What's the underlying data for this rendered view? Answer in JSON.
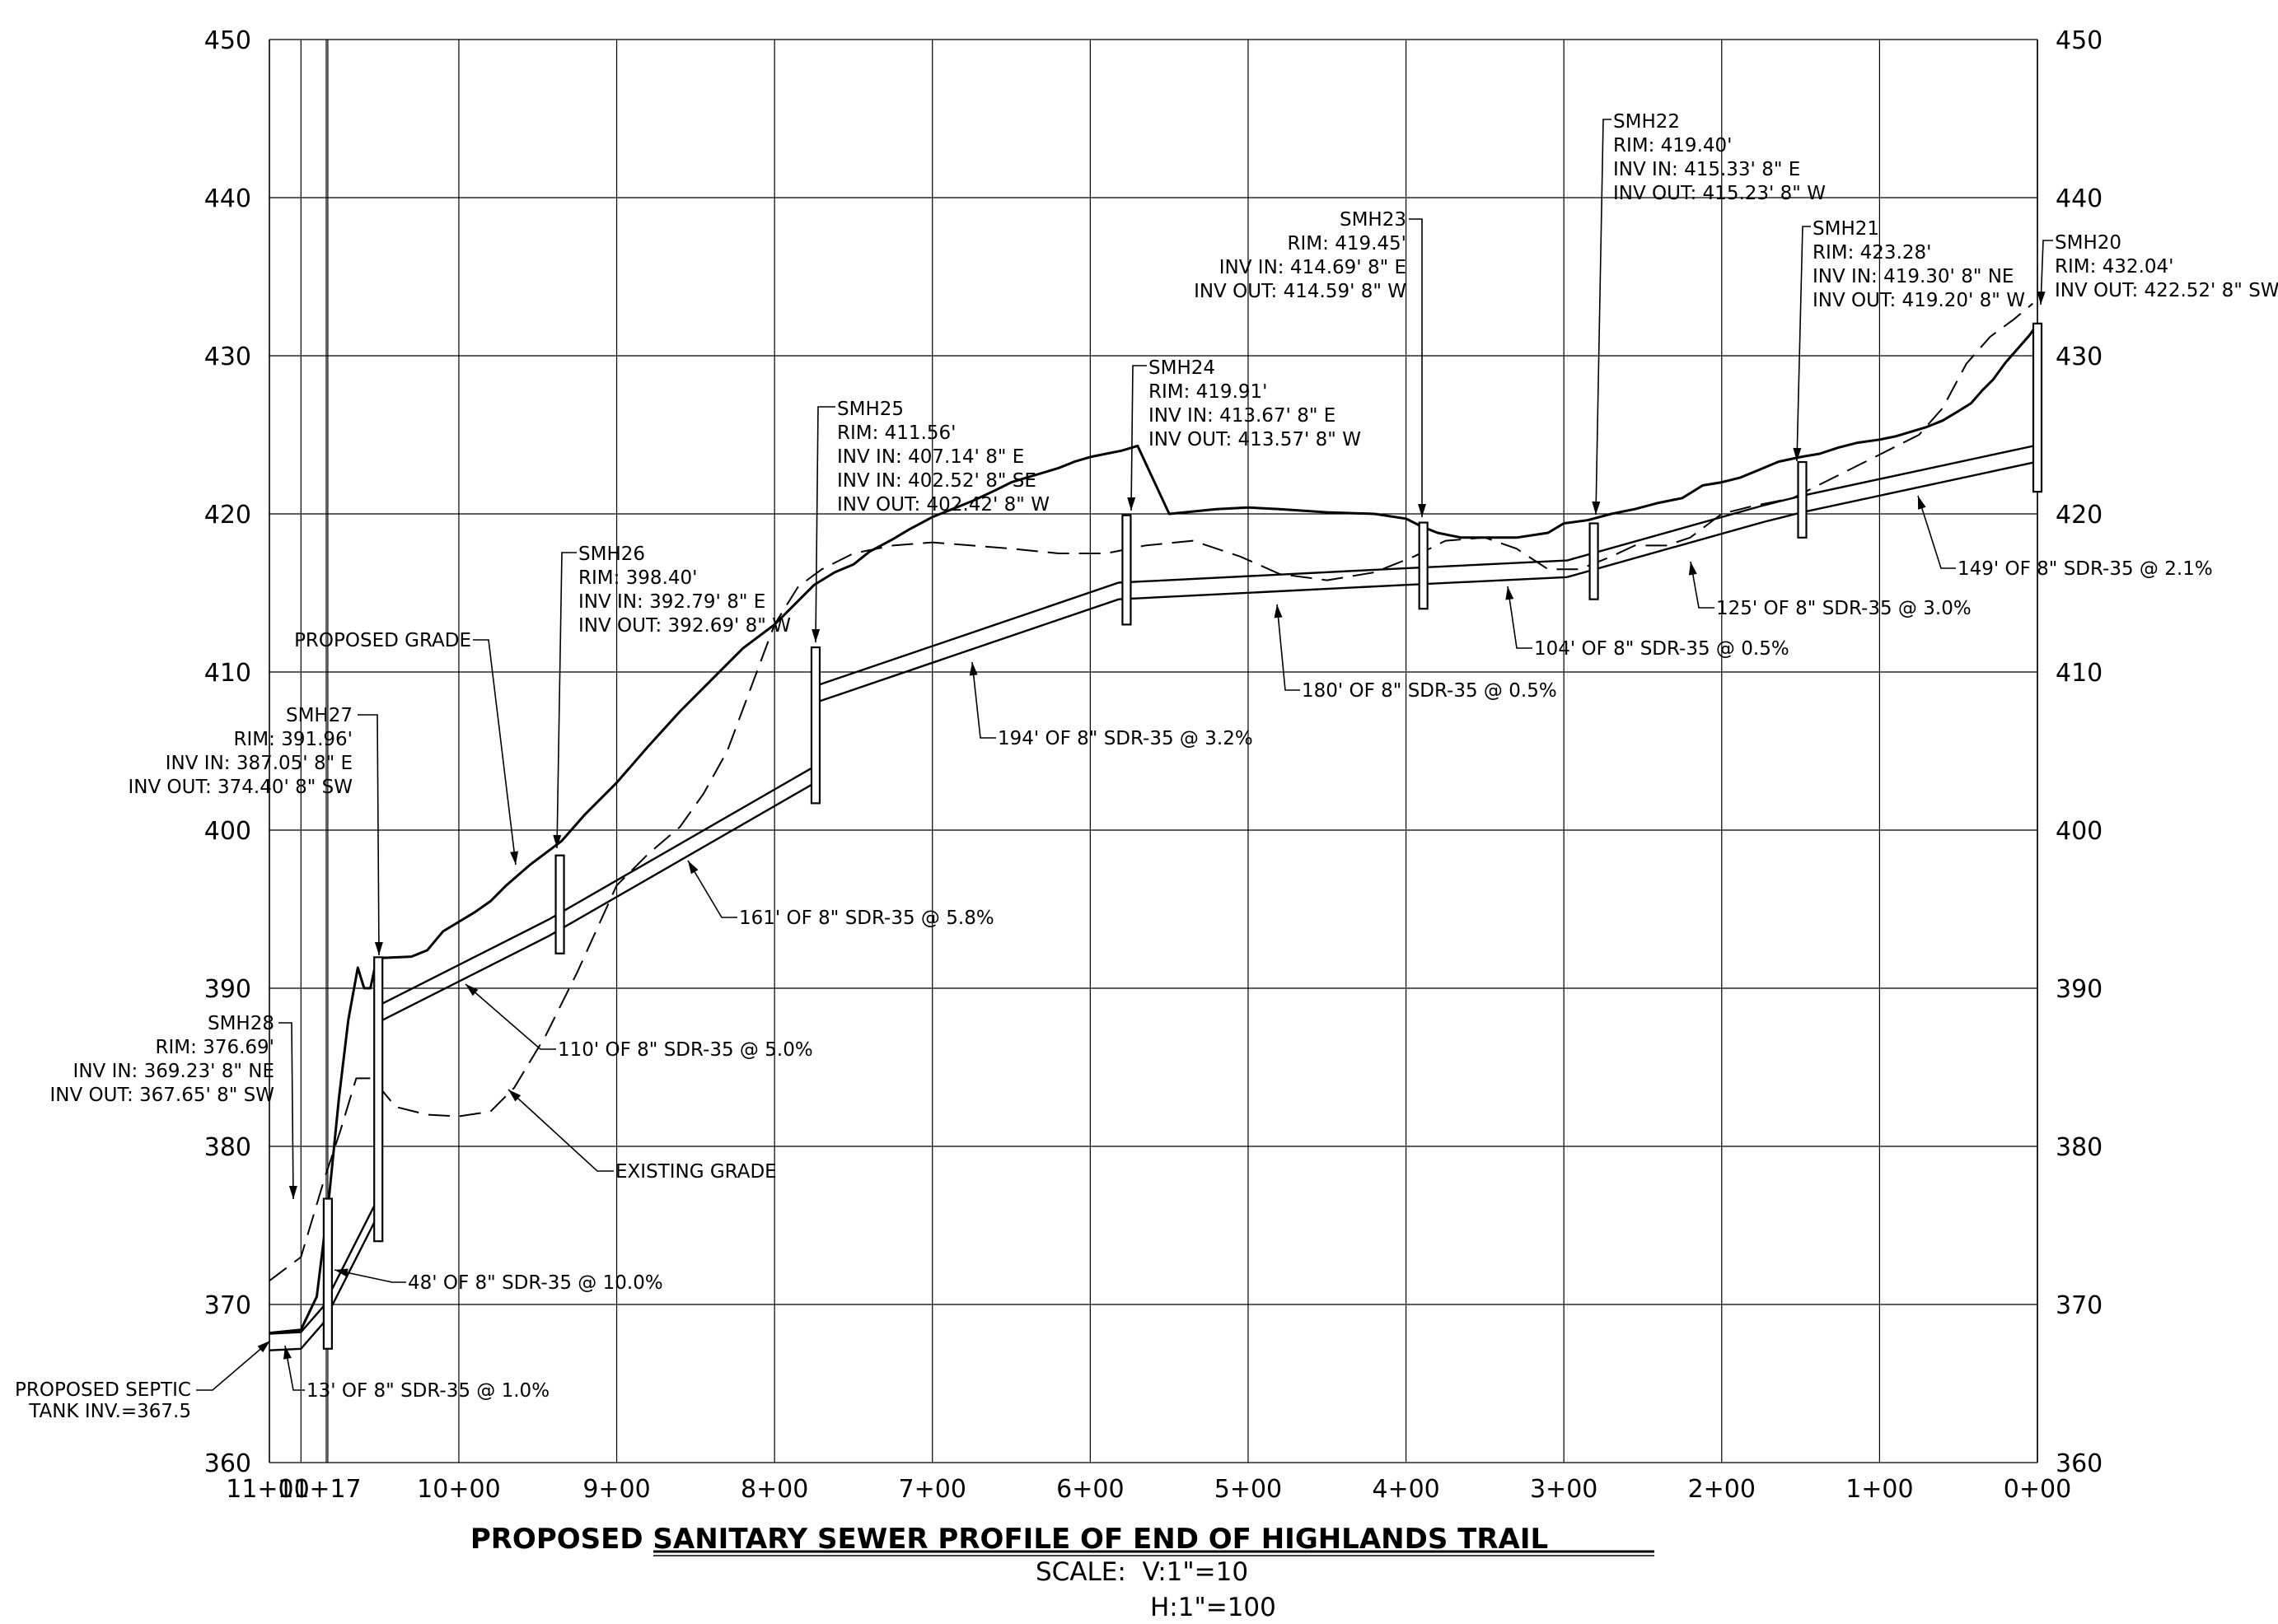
{
  "chart_data": {
    "type": "line",
    "title": "PROPOSED SANITARY SEWER PROFILE OF END OF HIGHLANDS TRAIL",
    "scale_lines": [
      "SCALE:  V:1\"=10",
      "H:1\"=100"
    ],
    "y_ticks": [
      "360",
      "370",
      "380",
      "390",
      "400",
      "410",
      "420",
      "430",
      "440",
      "450"
    ],
    "x_ticks": [
      {
        "sta": 0,
        "label": "0+00"
      },
      {
        "sta": 100,
        "label": "1+00"
      },
      {
        "sta": 200,
        "label": "2+00"
      },
      {
        "sta": 300,
        "label": "3+00"
      },
      {
        "sta": 400,
        "label": "4+00"
      },
      {
        "sta": 500,
        "label": "5+00"
      },
      {
        "sta": 600,
        "label": "6+00"
      },
      {
        "sta": 700,
        "label": "7+00"
      },
      {
        "sta": 800,
        "label": "8+00"
      },
      {
        "sta": 900,
        "label": "9+00"
      },
      {
        "sta": 1000,
        "label": "10+00"
      },
      {
        "sta": 1100,
        "label": "11+00"
      },
      {
        "sta": 1083,
        "label": "11+17"
      }
    ],
    "xlim": [
      0,
      1120
    ],
    "ylim": [
      360,
      450
    ],
    "x_reversed": true,
    "grid": true,
    "x_cutoff_extra_vline": 1084,
    "series": [
      {
        "name": "PROPOSED GRADE",
        "style": "solid",
        "points": [
          [
            1120,
            368.2
          ],
          [
            1100,
            368.4
          ],
          [
            1090,
            370.5
          ],
          [
            1082,
            377.0
          ],
          [
            1076,
            383.0
          ],
          [
            1070,
            388.0
          ],
          [
            1064,
            391.3
          ],
          [
            1060,
            390.0
          ],
          [
            1056,
            390.0
          ],
          [
            1052,
            391.9
          ],
          [
            1030,
            392.0
          ],
          [
            1020,
            392.4
          ],
          [
            1010,
            393.6
          ],
          [
            1000,
            394.2
          ],
          [
            990,
            394.8
          ],
          [
            980,
            395.5
          ],
          [
            970,
            396.5
          ],
          [
            955,
            397.8
          ],
          [
            935,
            399.3
          ],
          [
            920,
            401.0
          ],
          [
            900,
            403.0
          ],
          [
            880,
            405.3
          ],
          [
            860,
            407.5
          ],
          [
            840,
            409.5
          ],
          [
            820,
            411.5
          ],
          [
            800,
            413.0
          ],
          [
            785,
            414.5
          ],
          [
            775,
            415.5
          ],
          [
            762,
            416.3
          ],
          [
            750,
            416.8
          ],
          [
            740,
            417.6
          ],
          [
            725,
            418.4
          ],
          [
            715,
            419.0
          ],
          [
            700,
            419.8
          ],
          [
            690,
            420.2
          ],
          [
            675,
            420.8
          ],
          [
            660,
            421.5
          ],
          [
            650,
            422.0
          ],
          [
            640,
            422.3
          ],
          [
            630,
            422.6
          ],
          [
            620,
            422.9
          ],
          [
            610,
            423.3
          ],
          [
            600,
            423.6
          ],
          [
            590,
            423.8
          ],
          [
            580,
            424.0
          ],
          [
            570,
            424.3
          ],
          [
            550,
            420.0
          ],
          [
            520,
            420.3
          ],
          [
            500,
            420.4
          ],
          [
            480,
            420.3
          ],
          [
            450,
            420.1
          ],
          [
            420,
            420.0
          ],
          [
            400,
            419.7
          ],
          [
            390,
            419.2
          ],
          [
            380,
            418.8
          ],
          [
            365,
            418.5
          ],
          [
            350,
            418.5
          ],
          [
            330,
            418.5
          ],
          [
            310,
            418.8
          ],
          [
            300,
            419.4
          ],
          [
            285,
            419.6
          ],
          [
            270,
            420.0
          ],
          [
            255,
            420.3
          ],
          [
            240,
            420.7
          ],
          [
            225,
            421.0
          ],
          [
            212,
            421.8
          ],
          [
            200,
            422.0
          ],
          [
            188,
            422.3
          ],
          [
            176,
            422.8
          ],
          [
            164,
            423.3
          ],
          [
            150,
            423.6
          ],
          [
            138,
            423.8
          ],
          [
            126,
            424.2
          ],
          [
            114,
            424.5
          ],
          [
            100,
            424.7
          ],
          [
            90,
            424.9
          ],
          [
            80,
            425.2
          ],
          [
            70,
            425.5
          ],
          [
            60,
            425.9
          ],
          [
            50,
            426.5
          ],
          [
            42,
            427.0
          ],
          [
            35,
            427.8
          ],
          [
            28,
            428.5
          ],
          [
            20,
            429.6
          ],
          [
            12,
            430.5
          ],
          [
            5,
            431.3
          ],
          [
            0,
            432.0
          ]
        ]
      },
      {
        "name": "EXISTING GRADE",
        "style": "dashed",
        "points": [
          [
            1120,
            371.5
          ],
          [
            1100,
            373.0
          ],
          [
            1085,
            378.0
          ],
          [
            1075,
            381.0
          ],
          [
            1065,
            384.3
          ],
          [
            1055,
            384.3
          ],
          [
            1040,
            382.5
          ],
          [
            1020,
            382.0
          ],
          [
            1000,
            381.9
          ],
          [
            980,
            382.2
          ],
          [
            965,
            383.7
          ],
          [
            945,
            387.0
          ],
          [
            925,
            391.0
          ],
          [
            900,
            396.5
          ],
          [
            880,
            398.5
          ],
          [
            860,
            400.2
          ],
          [
            845,
            402.3
          ],
          [
            830,
            405.0
          ],
          [
            815,
            409.0
          ],
          [
            800,
            413.0
          ],
          [
            785,
            415.4
          ],
          [
            770,
            416.5
          ],
          [
            750,
            417.5
          ],
          [
            725,
            418.0
          ],
          [
            700,
            418.2
          ],
          [
            675,
            418.0
          ],
          [
            650,
            417.8
          ],
          [
            620,
            417.5
          ],
          [
            590,
            417.5
          ],
          [
            565,
            418.0
          ],
          [
            535,
            418.3
          ],
          [
            505,
            417.3
          ],
          [
            480,
            416.2
          ],
          [
            450,
            415.8
          ],
          [
            420,
            416.3
          ],
          [
            395,
            417.3
          ],
          [
            375,
            418.3
          ],
          [
            350,
            418.5
          ],
          [
            330,
            417.8
          ],
          [
            310,
            416.5
          ],
          [
            290,
            416.5
          ],
          [
            270,
            417.3
          ],
          [
            255,
            418.0
          ],
          [
            235,
            418.0
          ],
          [
            220,
            418.5
          ],
          [
            200,
            420.0
          ],
          [
            180,
            420.5
          ],
          [
            155,
            421.0
          ],
          [
            135,
            422.0
          ],
          [
            115,
            423.0
          ],
          [
            95,
            424.0
          ],
          [
            75,
            425.0
          ],
          [
            60,
            426.7
          ],
          [
            45,
            429.5
          ],
          [
            30,
            431.2
          ],
          [
            15,
            432.3
          ],
          [
            3,
            433.3
          ]
        ]
      }
    ],
    "pipe": {
      "name": "PROPOSED SEWER (8\" SDR-35)",
      "nodes": [
        [
          1120,
          367.1
        ],
        [
          1100,
          367.2
        ],
        [
          1086,
          368.8
        ],
        [
          1052,
          375.5
        ],
        [
          1052,
          387.8
        ],
        [
          943,
          393.3
        ],
        [
          776,
          402.9
        ],
        [
          776,
          408.0
        ],
        [
          582,
          414.6
        ],
        [
          402,
          415.5
        ],
        [
          298,
          416.0
        ],
        [
          173,
          419.5
        ],
        [
          149,
          420.1
        ],
        [
          0,
          423.3
        ]
      ],
      "wall_offset": 1.05
    },
    "manholes": [
      {
        "sta": 0,
        "rim": 432.04,
        "bottom": 421.4
      },
      {
        "sta": 149,
        "rim": 423.28,
        "bottom": 418.5
      },
      {
        "sta": 281,
        "rim": 419.4,
        "bottom": 414.6
      },
      {
        "sta": 389,
        "rim": 419.45,
        "bottom": 414.0
      },
      {
        "sta": 577,
        "rim": 419.91,
        "bottom": 413.0
      },
      {
        "sta": 774,
        "rim": 411.56,
        "bottom": 401.7
      },
      {
        "sta": 936,
        "rim": 398.4,
        "bottom": 392.2
      },
      {
        "sta": 1051,
        "rim": 391.96,
        "bottom": 374.0
      },
      {
        "sta": 1083,
        "rim": 376.69,
        "bottom": 367.2
      }
    ],
    "manhole_labels": [
      {
        "lines": [
          "SMH20",
          "RIM: 432.04'",
          "INV OUT: 422.52' 8\" SW"
        ]
      },
      {
        "lines": [
          "SMH21",
          "RIM: 423.28'",
          "INV IN: 419.30' 8\" NE",
          "INV OUT: 419.20' 8\" W"
        ]
      },
      {
        "lines": [
          "SMH22",
          "RIM: 419.40'",
          "INV IN: 415.33' 8\" E",
          "INV OUT: 415.23' 8\" W"
        ]
      },
      {
        "lines": [
          "SMH23",
          "RIM: 419.45'",
          "INV IN: 414.69' 8\" E",
          "INV OUT: 414.59' 8\" W"
        ]
      },
      {
        "lines": [
          "SMH24",
          "RIM: 419.91'",
          "INV IN: 413.67' 8\" E",
          "INV OUT: 413.57' 8\" W"
        ]
      },
      {
        "lines": [
          "SMH25",
          "RIM: 411.56'",
          "INV IN: 407.14' 8\" E",
          "INV IN: 402.52' 8\" SE",
          "INV OUT: 402.42' 8\" W"
        ]
      },
      {
        "lines": [
          "SMH26",
          "RIM: 398.40'",
          "INV IN: 392.79' 8\" E",
          "INV OUT: 392.69' 8\" W"
        ]
      },
      {
        "lines": [
          "SMH27",
          "RIM: 391.96'",
          "INV IN: 387.05' 8\" E",
          "INV OUT: 374.40' 8\" SW"
        ]
      },
      {
        "lines": [
          "SMH28",
          "RIM: 376.69'",
          "INV IN: 369.23' 8\" NE",
          "INV OUT: 367.65' 8\" SW"
        ]
      }
    ],
    "pipe_labels": [
      "149' OF 8\" SDR-35 @ 2.1%",
      "125' OF 8\" SDR-35 @ 3.0%",
      "104' OF 8\" SDR-35 @ 0.5%",
      "180' OF 8\" SDR-35 @ 0.5%",
      "194' OF 8\" SDR-35 @ 3.2%",
      "161' OF 8\" SDR-35 @ 5.8%",
      "110' OF 8\" SDR-35 @ 5.0%",
      "48' OF 8\" SDR-35 @ 10.0%",
      "13' OF 8\" SDR-35 @ 1.0%"
    ],
    "grade_labels": [
      "PROPOSED GRADE",
      "EXISTING GRADE"
    ],
    "septic_label": [
      "PROPOSED SEPTIC",
      "TANK INV.=367.5"
    ]
  }
}
